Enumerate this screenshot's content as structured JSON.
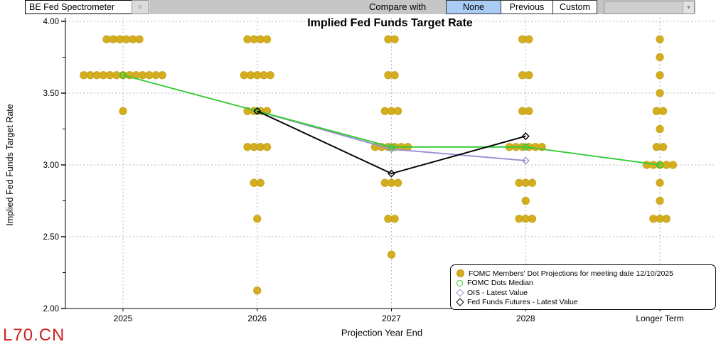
{
  "topbar": {
    "app_selector": "BE Fed Spectrometer",
    "expand_button": "»",
    "compare_label": "Compare with",
    "compare_options": [
      {
        "label": "None",
        "selected": true
      },
      {
        "label": "Previous",
        "selected": false
      },
      {
        "label": "Custom",
        "selected": false
      }
    ],
    "custom_dropdown_value": "",
    "dropdown_arrow": "▼",
    "selected_color": "#a8ccf4"
  },
  "footer": {
    "ticker": "L70.CN",
    "ticker_color": "#cc2222"
  },
  "chart_data": {
    "type": "scatter",
    "title": "Implied Fed Funds Target Rate",
    "xlabel": "Projection Year End",
    "ylabel": "Implied Fed Funds Target Rate",
    "ylim": [
      2.0,
      4.0
    ],
    "y_ticks": [
      {
        "value": 4.0,
        "label": "4.00"
      },
      {
        "value": 3.5,
        "label": "3.50"
      },
      {
        "value": 3.0,
        "label": "3.00"
      },
      {
        "value": 2.5,
        "label": "2.50"
      },
      {
        "value": 2.0,
        "label": "2.00"
      }
    ],
    "y_minor_step": 0.25,
    "grid": true,
    "legend_position": "bottom-right",
    "categories": [
      "2025",
      "2026",
      "2027",
      "2028",
      "Longer Term"
    ],
    "series": [
      {
        "name": "FOMC Members' Dot Projections for meeting date 12/10/2025",
        "type": "dots",
        "color": "#d4ae1e",
        "edge_color": "#c3a015",
        "groups": [
          {
            "category": "2025",
            "rows": [
              {
                "rate": 3.875,
                "count": 6
              },
              {
                "rate": 3.625,
                "count": 13
              },
              {
                "rate": 3.375,
                "count": 1
              }
            ]
          },
          {
            "category": "2026",
            "rows": [
              {
                "rate": 3.875,
                "count": 4
              },
              {
                "rate": 3.625,
                "count": 5
              },
              {
                "rate": 3.375,
                "count": 4
              },
              {
                "rate": 3.125,
                "count": 4
              },
              {
                "rate": 2.875,
                "count": 2
              },
              {
                "rate": 2.625,
                "count": 1
              },
              {
                "rate": 2.125,
                "count": 1
              }
            ]
          },
          {
            "category": "2027",
            "rows": [
              {
                "rate": 3.875,
                "count": 2
              },
              {
                "rate": 3.625,
                "count": 2
              },
              {
                "rate": 3.375,
                "count": 3
              },
              {
                "rate": 3.125,
                "count": 6
              },
              {
                "rate": 2.875,
                "count": 3
              },
              {
                "rate": 2.625,
                "count": 2
              },
              {
                "rate": 2.375,
                "count": 1
              }
            ]
          },
          {
            "category": "2028",
            "rows": [
              {
                "rate": 3.875,
                "count": 2
              },
              {
                "rate": 3.625,
                "count": 2
              },
              {
                "rate": 3.375,
                "count": 2
              },
              {
                "rate": 3.125,
                "count": 6
              },
              {
                "rate": 2.875,
                "count": 3
              },
              {
                "rate": 2.75,
                "count": 1
              },
              {
                "rate": 2.625,
                "count": 3
              }
            ]
          },
          {
            "category": "Longer Term",
            "rows": [
              {
                "rate": 3.875,
                "count": 1
              },
              {
                "rate": 3.75,
                "count": 1
              },
              {
                "rate": 3.625,
                "count": 1
              },
              {
                "rate": 3.5,
                "count": 1
              },
              {
                "rate": 3.375,
                "count": 2
              },
              {
                "rate": 3.25,
                "count": 1
              },
              {
                "rate": 3.125,
                "count": 2
              },
              {
                "rate": 3.0,
                "count": 5
              },
              {
                "rate": 2.875,
                "count": 1
              },
              {
                "rate": 2.75,
                "count": 1
              },
              {
                "rate": 2.625,
                "count": 3
              }
            ]
          }
        ]
      },
      {
        "name": "FOMC Dots Median",
        "type": "line",
        "marker": "open-circle",
        "color": "#33cc33",
        "points": [
          {
            "category": "2025",
            "value": 3.625
          },
          {
            "category": "2026",
            "value": 3.375
          },
          {
            "category": "2027",
            "value": 3.125
          },
          {
            "category": "2028",
            "value": 3.125
          },
          {
            "category": "Longer Term",
            "value": 3.0
          }
        ]
      },
      {
        "name": "OIS - Latest Value",
        "type": "line",
        "marker": "open-diamond",
        "color": "#998fd4",
        "points": [
          {
            "category": "2026",
            "value": 3.375
          },
          {
            "category": "2027",
            "value": 3.11
          },
          {
            "category": "2028",
            "value": 3.03
          }
        ]
      },
      {
        "name": "Fed Funds Futures - Latest Value",
        "type": "line",
        "marker": "open-diamond",
        "color": "#000000",
        "points": [
          {
            "category": "2026",
            "value": 3.375
          },
          {
            "category": "2027",
            "value": 2.94
          },
          {
            "category": "2028",
            "value": 3.2
          }
        ]
      }
    ]
  }
}
